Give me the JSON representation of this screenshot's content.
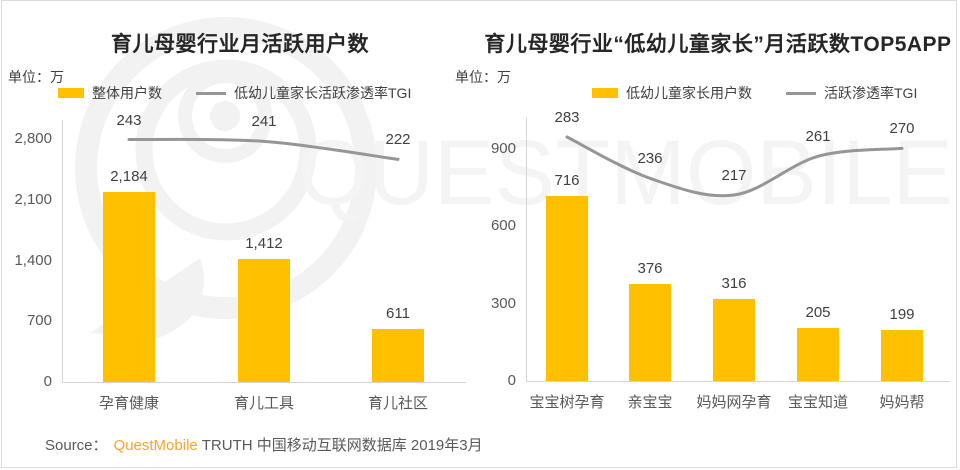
{
  "colors": {
    "bar": "#FFC000",
    "line": "#969696",
    "brand_orange": "#F7A52A",
    "title_text": "#262626",
    "label_text": "#404040",
    "axis_text": "#595959",
    "axis_line": "#D4D4D4",
    "watermark": "#F2F2F2"
  },
  "watermark": {
    "text": "QUESTMOBILE",
    "logo": "questmobile-bubble-logo"
  },
  "footer": {
    "source_label": "Source：",
    "brand": "QuestMobile",
    "rest": "TRUTH 中国移动互联网数据库 2019年3月"
  },
  "chart_data": [
    {
      "type": "bar+line",
      "title": "育儿母婴行业月活跃用户数",
      "unit_label": "单位：万",
      "categories": [
        "孕育健康",
        "育儿工具",
        "育儿社区"
      ],
      "series": [
        {
          "name": "整体用户数",
          "type": "bar",
          "values": [
            2184,
            1412,
            611
          ],
          "labels": [
            "2,184",
            "1,412",
            "611"
          ]
        },
        {
          "name": "低幼儿童家长活跃渗透率TGI",
          "type": "line",
          "values": [
            243,
            241,
            222
          ],
          "labels": [
            "243",
            "241",
            "222"
          ]
        }
      ],
      "y_ticks": [
        "0",
        "700",
        "1,400",
        "2,100",
        "2,800"
      ],
      "ylim": [
        0,
        2800
      ],
      "grid": "off",
      "legend_position": "top"
    },
    {
      "type": "bar+line",
      "title": "育儿母婴行业“低幼儿童家长”月活跃数TOP5APP",
      "unit_label": "单位：万",
      "categories": [
        "宝宝树孕育",
        "亲宝宝",
        "妈妈网孕育",
        "宝宝知道",
        "妈妈帮"
      ],
      "series": [
        {
          "name": "低幼儿童家长用户数",
          "type": "bar",
          "values": [
            716,
            376,
            316,
            205,
            199
          ],
          "labels": [
            "716",
            "376",
            "316",
            "205",
            "199"
          ]
        },
        {
          "name": "活跃渗透率TGI",
          "type": "line",
          "values": [
            283,
            236,
            217,
            261,
            270
          ],
          "labels": [
            "283",
            "236",
            "217",
            "261",
            "270"
          ]
        }
      ],
      "y_ticks": [
        "0",
        "300",
        "600",
        "900"
      ],
      "ylim": [
        0,
        900
      ],
      "grid": "off",
      "legend_position": "top"
    }
  ]
}
